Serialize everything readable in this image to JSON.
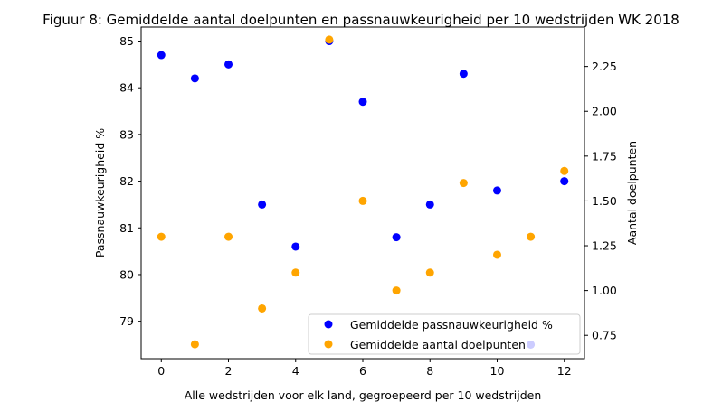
{
  "chart_data": {
    "type": "scatter",
    "title": "Figuur 8: Gemiddelde aantal doelpunten en passnauwkeurigheid per 10 wedstrijden WK 2018",
    "xlabel": "Alle wedstrijden voor elk land, gegroepeerd per 10 wedstrijden",
    "ylabel_left": "Passnauwkeurigheid %",
    "ylabel_right": "Aantal doelpunten",
    "xlim": [
      -0.6,
      12.6
    ],
    "ylim_left": [
      78.2,
      85.3
    ],
    "ylim_right": [
      0.62,
      2.47
    ],
    "x_ticks": [
      "0",
      "2",
      "4",
      "6",
      "8",
      "10",
      "12"
    ],
    "y_left_ticks": [
      "79",
      "80",
      "81",
      "82",
      "83",
      "84",
      "85"
    ],
    "y_right_ticks": [
      "0.75",
      "1.00",
      "1.25",
      "1.50",
      "1.75",
      "2.00",
      "2.25"
    ],
    "legend_position": "lower right",
    "grid": false,
    "series": [
      {
        "name": "Gemiddelde passnauwkeurigheid %",
        "axis": "left",
        "color": "#0000ff",
        "x": [
          0,
          1,
          2,
          3,
          4,
          5,
          6,
          7,
          8,
          9,
          10,
          11,
          12
        ],
        "y": [
          84.7,
          84.2,
          84.5,
          81.5,
          80.6,
          85.0,
          83.7,
          80.8,
          81.5,
          84.3,
          81.8,
          78.5,
          82.0
        ]
      },
      {
        "name": "Gemiddelde aantal doelpunten",
        "axis": "right",
        "color": "#ffa500",
        "x": [
          0,
          1,
          2,
          3,
          4,
          5,
          6,
          7,
          8,
          9,
          10,
          11,
          12
        ],
        "y": [
          1.3,
          0.7,
          1.3,
          0.9,
          1.1,
          2.4,
          1.5,
          1.0,
          1.1,
          1.6,
          1.2,
          1.3,
          1.667
        ]
      }
    ]
  }
}
